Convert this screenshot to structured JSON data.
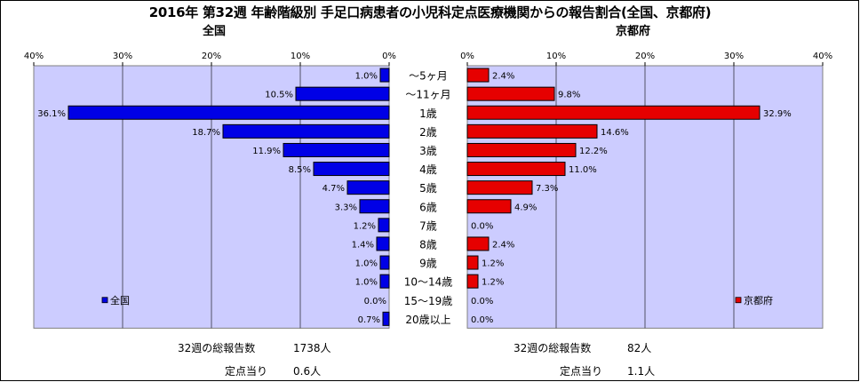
{
  "title": "2016年 第32週 年齢階級別 手足口病患者の小児科定点医療機関からの報告割合(全国、京都府)",
  "colors": {
    "national": "#0000e6",
    "kyoto": "#e60000",
    "plot_bg": "#ccccff",
    "panel_bg": "#ffffff"
  },
  "chart_data": [
    {
      "type": "bar",
      "orientation": "horizontal",
      "title": "全国",
      "categories": [
        "～5ヶ月",
        "～11ヶ月",
        "1歳",
        "2歳",
        "3歳",
        "4歳",
        "5歳",
        "6歳",
        "7歳",
        "8歳",
        "9歳",
        "10～14歳",
        "15～19歳",
        "20歳以上"
      ],
      "series": [
        {
          "name": "全国",
          "values": [
            1.0,
            10.5,
            36.1,
            18.7,
            11.9,
            8.5,
            4.7,
            3.3,
            1.2,
            1.4,
            1.0,
            1.0,
            0.0,
            0.7
          ],
          "labels": [
            "1.0%",
            "10.5%",
            "36.1%",
            "18.7%",
            "11.9%",
            "8.5%",
            "4.7%",
            "3.3%",
            "1.2%",
            "1.4%",
            "1.0%",
            "1.0%",
            "0.0%",
            "0.7%"
          ]
        }
      ],
      "xlim": [
        0,
        40
      ],
      "ticks": [
        "40%",
        "30%",
        "20%",
        "10%",
        "0%"
      ],
      "reversed": true,
      "legend": "bottom-left",
      "grid": true
    },
    {
      "type": "bar",
      "orientation": "horizontal",
      "title": "京都府",
      "categories": [
        "～5ヶ月",
        "～11ヶ月",
        "1歳",
        "2歳",
        "3歳",
        "4歳",
        "5歳",
        "6歳",
        "7歳",
        "8歳",
        "9歳",
        "10～14歳",
        "15～19歳",
        "20歳以上"
      ],
      "series": [
        {
          "name": "京都府",
          "values": [
            2.4,
            9.8,
            32.9,
            14.6,
            12.2,
            11.0,
            7.3,
            4.9,
            0.0,
            2.4,
            1.2,
            1.2,
            0.0,
            0.0
          ],
          "labels": [
            "2.4%",
            "9.8%",
            "32.9%",
            "14.6%",
            "12.2%",
            "11.0%",
            "7.3%",
            "4.9%",
            "0.0%",
            "2.4%",
            "1.2%",
            "1.2%",
            "0.0%",
            "0.0%"
          ]
        }
      ],
      "xlim": [
        0,
        40
      ],
      "ticks": [
        "0%",
        "10%",
        "20%",
        "30%",
        "40%"
      ],
      "reversed": false,
      "legend": "bottom-right",
      "grid": true
    }
  ],
  "stats": {
    "national": {
      "total_label": "32週の総報告数",
      "total_value": "1738人",
      "per_label": "定点当り",
      "per_value": "0.6人"
    },
    "kyoto": {
      "total_label": "32週の総報告数",
      "total_value": "82人",
      "per_label": "定点当り",
      "per_value": "1.1人"
    }
  }
}
